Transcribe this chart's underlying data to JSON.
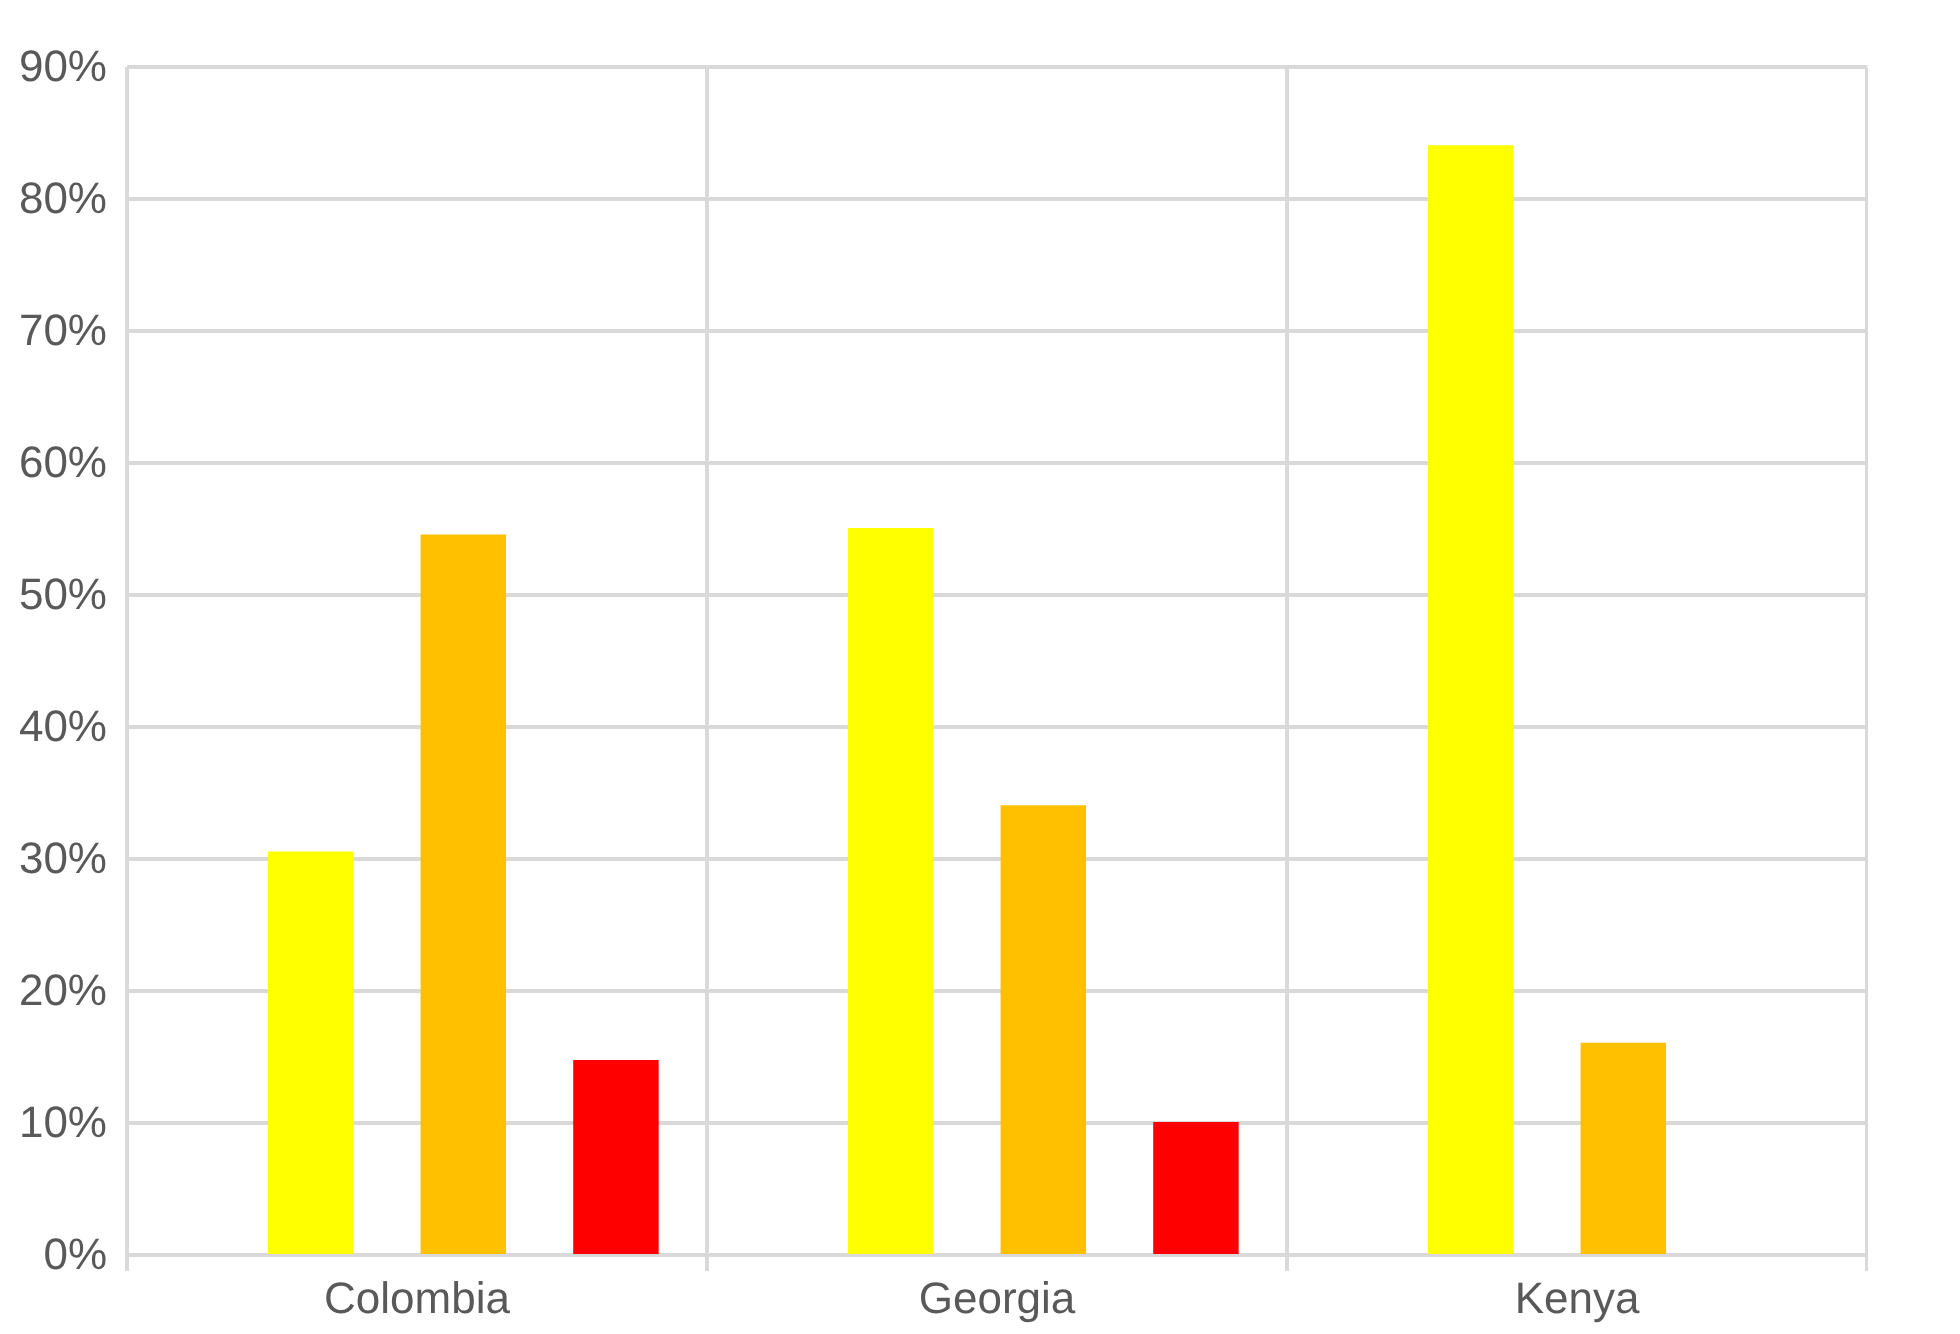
{
  "chart_data": {
    "type": "bar",
    "categories": [
      "Colombia",
      "Georgia",
      "Kenya"
    ],
    "series": [
      {
        "color": "#ffff00",
        "values": [
          30.5,
          55,
          84
        ]
      },
      {
        "color": "#ffc000",
        "values": [
          54.5,
          34,
          16
        ]
      },
      {
        "color": "#ff0000",
        "values": [
          14.7,
          10,
          0
        ]
      }
    ],
    "ylim": [
      0,
      90
    ],
    "yticks": [
      {
        "value": 0,
        "label": "0%"
      },
      {
        "value": 10,
        "label": "10%"
      },
      {
        "value": 20,
        "label": "20%"
      },
      {
        "value": 30,
        "label": "30%"
      },
      {
        "value": 40,
        "label": "40%"
      },
      {
        "value": 50,
        "label": "50%"
      },
      {
        "value": 60,
        "label": "60%"
      },
      {
        "value": 70,
        "label": "70%"
      },
      {
        "value": 80,
        "label": "80%"
      },
      {
        "value": 90,
        "label": "90%"
      }
    ],
    "grid": true,
    "legend": false
  }
}
